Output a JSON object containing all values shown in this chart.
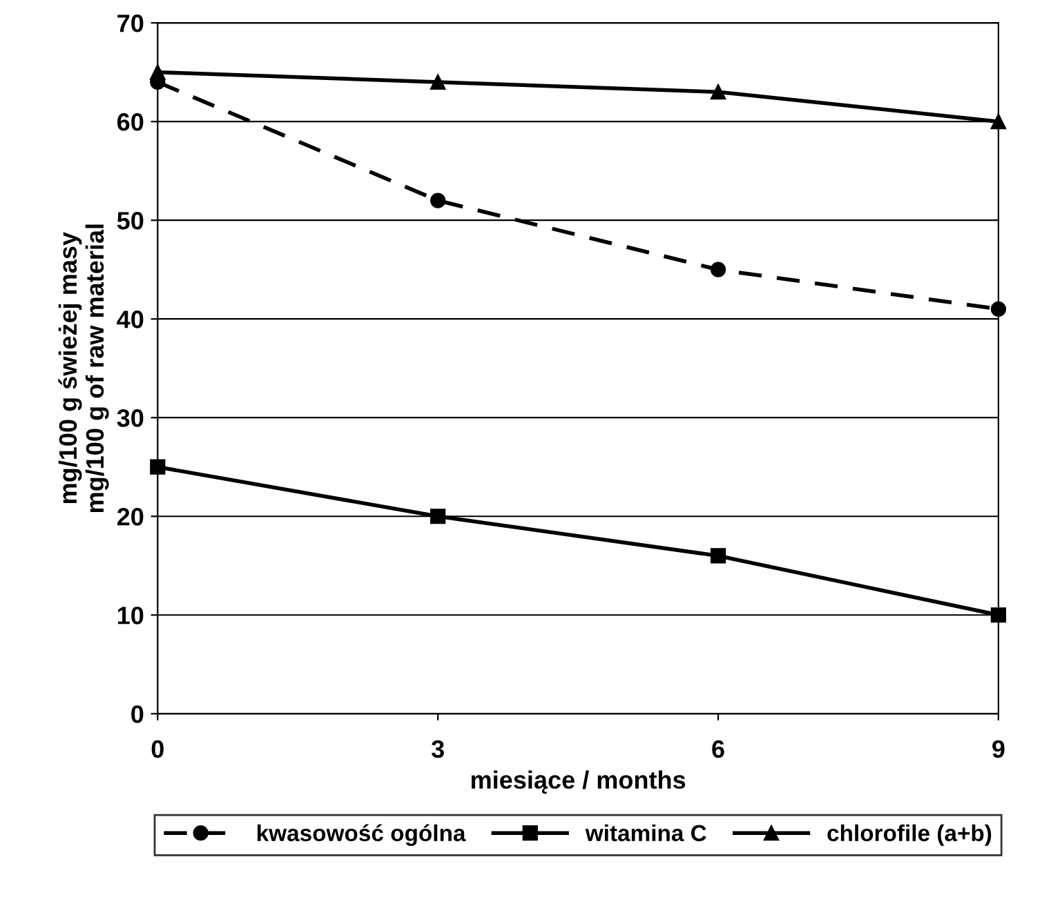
{
  "chart_data": {
    "type": "line",
    "xlabel": "miesiące / months",
    "ylabel": "mg/100 g świeżej masy\nmg/100 g of raw material",
    "x": [
      0,
      3,
      6,
      9
    ],
    "xlim": [
      0,
      9
    ],
    "xticks": [
      0,
      3,
      6,
      9
    ],
    "ylim": [
      0,
      70
    ],
    "yticks": [
      0,
      10,
      20,
      30,
      40,
      50,
      60,
      70
    ],
    "grid": "y",
    "legend": "bottom",
    "series": [
      {
        "name": "kwasowość ogólna",
        "color": "#000000",
        "values": [
          64,
          52,
          45,
          41
        ],
        "marker": "circle",
        "line_style": "dashed"
      },
      {
        "name": "witamina C",
        "color": "#000000",
        "values": [
          25,
          20,
          16,
          10
        ],
        "marker": "square",
        "line_style": "solid"
      },
      {
        "name": "chlorofile (a+b)",
        "color": "#000000",
        "values": [
          65,
          64,
          63,
          60
        ],
        "marker": "triangle",
        "line_style": "solid"
      }
    ]
  }
}
